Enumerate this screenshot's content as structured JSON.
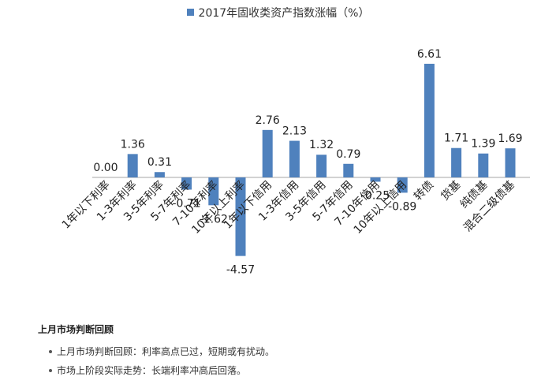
{
  "colors": {
    "bar": "#4f81bd",
    "axis": "#a6a6a6",
    "text": "#222222"
  },
  "notes": {
    "title": "上月市场判断回顾",
    "items": [
      "上月市场判断回顾：利率高点已过，短期或有扰动。",
      "市场上阶段实际走势：长端利率冲高后回落。"
    ]
  },
  "chart_data": {
    "type": "bar",
    "title": "",
    "legend": "top-center",
    "grid": false,
    "series": [
      {
        "name": "2017年固收类资产指数涨幅（%）",
        "values": [
          0.0,
          1.36,
          0.31,
          -0.71,
          -1.62,
          -4.57,
          2.76,
          2.13,
          1.32,
          0.79,
          -0.25,
          -0.89,
          6.61,
          1.71,
          1.39,
          1.69
        ]
      }
    ],
    "categories": [
      "1年以下利率",
      "1-3年利率",
      "3-5年利率",
      "5-7年利率",
      "7-10年利率",
      "10年以上利率",
      "1年以下信用",
      "1-3年信用",
      "3-5年信用",
      "5-7年信用",
      "7-10年信用",
      "10年以上信用",
      "转债",
      "货基",
      "纯债基",
      "混合二级债基"
    ],
    "value_labels": [
      "0.00",
      "1.36",
      "0.31",
      "-0.71",
      "-1.62",
      "-4.57",
      "2.76",
      "2.13",
      "1.32",
      "0.79",
      "-0.25",
      "-0.89",
      "6.61",
      "1.71",
      "1.39",
      "1.69"
    ],
    "ylim": [
      -4.57,
      6.61
    ]
  }
}
